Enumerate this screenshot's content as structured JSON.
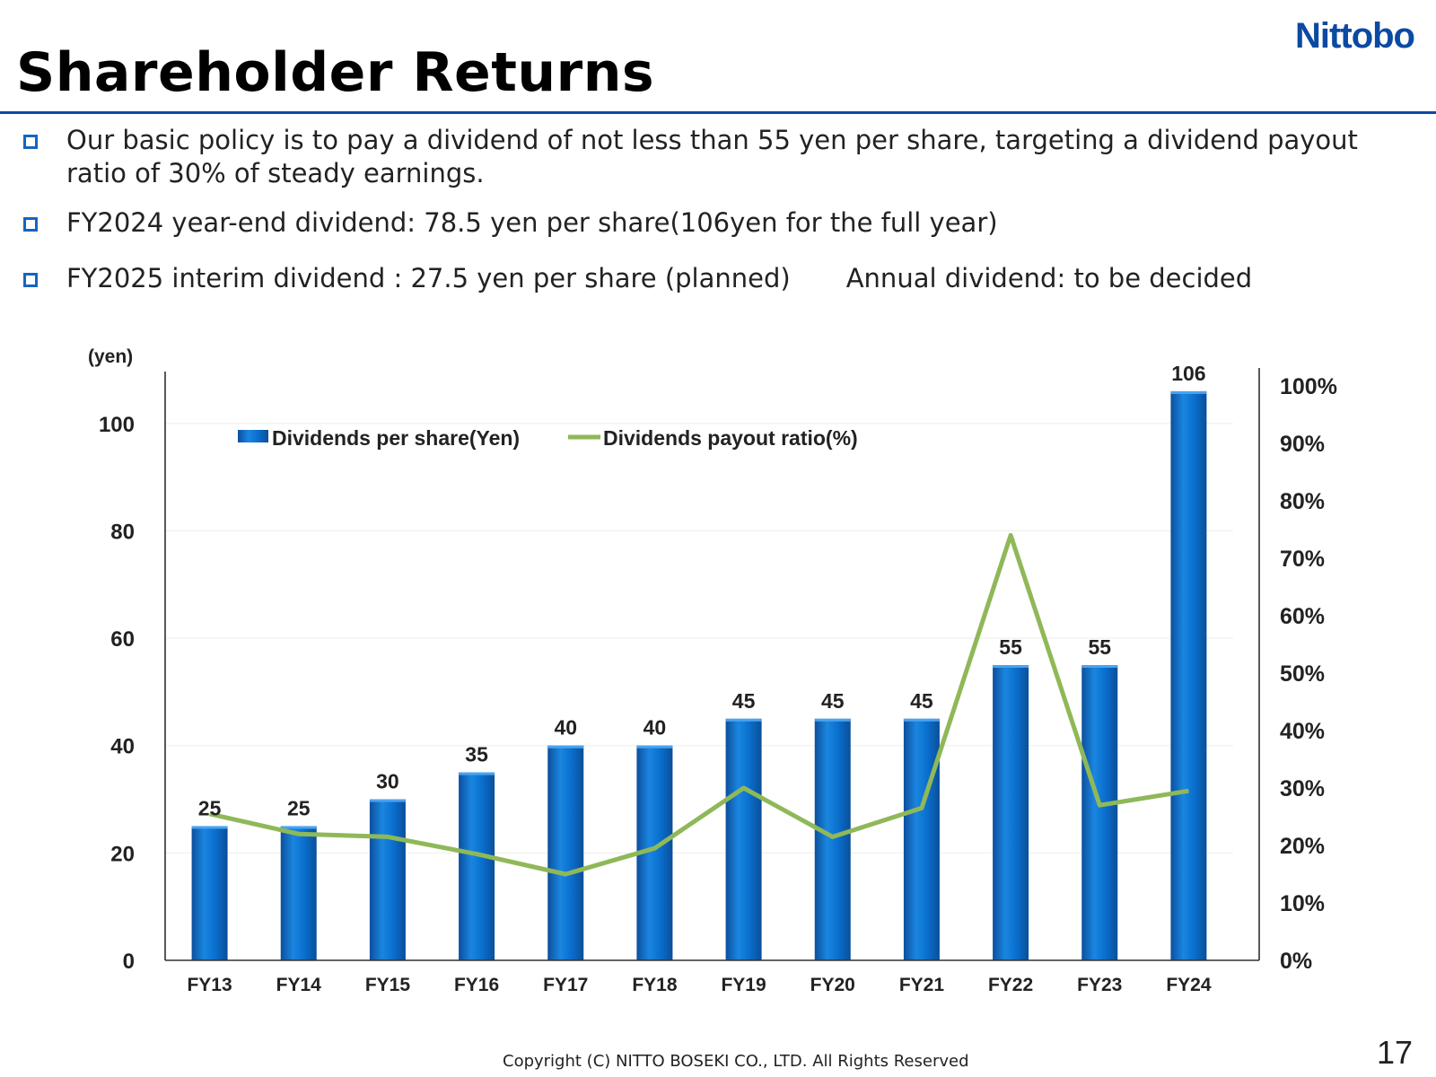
{
  "header": {
    "logo_text": "Nittobo",
    "title": "Shareholder Returns"
  },
  "bullets": [
    "Our basic policy is to pay a dividend of not less than 55 yen per share, targeting a dividend payout ratio of 30% of steady earnings.",
    "FY2024 year-end dividend: 78.5 yen per share(106yen for the full year)",
    "FY2025 interim dividend : 27.5 yen per share (planned)"
  ],
  "bullet3_extra": "Annual dividend: to be decided",
  "chart_data": {
    "type": "bar",
    "categories": [
      "FY13",
      "FY14",
      "FY15",
      "FY16",
      "FY17",
      "FY18",
      "FY19",
      "FY20",
      "FY21",
      "FY22",
      "FY23",
      "FY24"
    ],
    "series": [
      {
        "name": "Dividends  per share(Yen)",
        "kind": "bar",
        "axis": "left",
        "values": [
          25,
          25,
          30,
          35,
          40,
          40,
          45,
          45,
          45,
          55,
          55,
          106
        ],
        "color": "#0a6fce"
      },
      {
        "name": "Dividends  payout ratio(%)",
        "kind": "line",
        "axis": "right",
        "values": [
          25.5,
          22,
          21.5,
          18.5,
          15,
          19.5,
          30,
          21.5,
          26.5,
          74,
          27,
          29.5
        ],
        "color": "#8fb858"
      }
    ],
    "data_labels": [
      "25",
      "25",
      "30",
      "35",
      "40",
      "40",
      "45",
      "45",
      "45",
      "55",
      "55",
      "106"
    ],
    "left_axis": {
      "label": "(yen)",
      "ticks": [
        "0",
        "20",
        "40",
        "60",
        "80",
        "100"
      ],
      "ylim": [
        0,
        110
      ]
    },
    "right_axis": {
      "ticks": [
        "0%",
        "10%",
        "20%",
        "30%",
        "40%",
        "50%",
        "60%",
        "70%",
        "80%",
        "90%",
        "100%"
      ],
      "ylim": [
        0,
        100
      ]
    },
    "grid": true,
    "legend": "top-left"
  },
  "footer": {
    "copyright": "Copyright (C)  NITTO BOSEKI CO., LTD. All Rights Reserved",
    "page_number": "17"
  }
}
